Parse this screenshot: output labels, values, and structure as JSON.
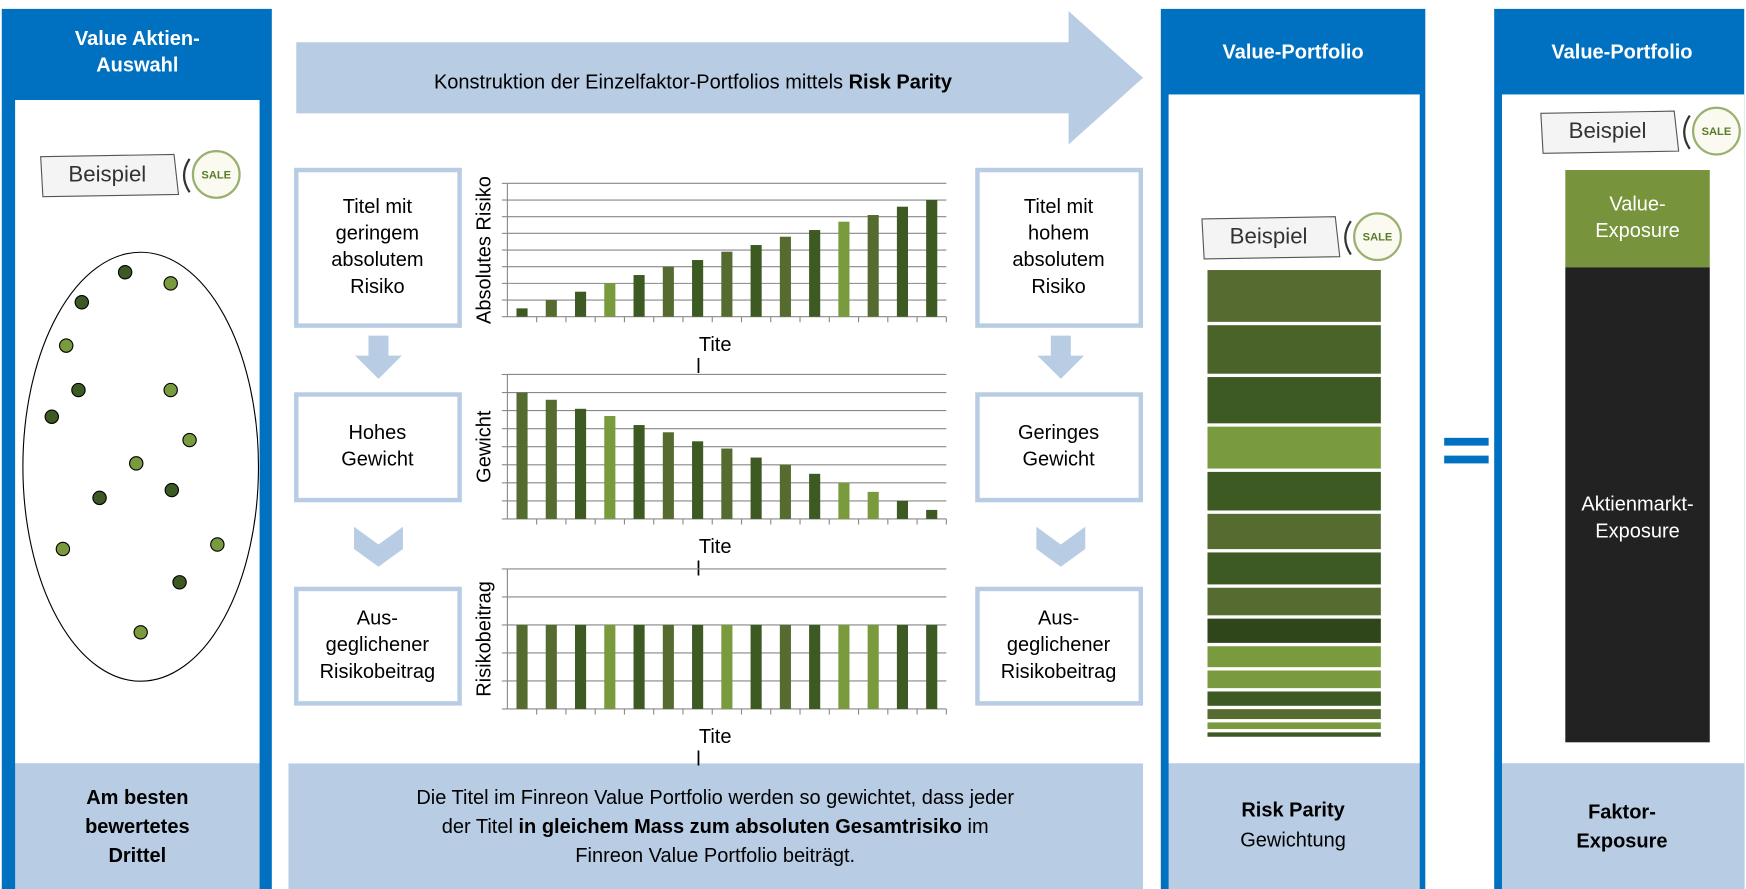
{
  "left": {
    "header": [
      "Value Aktien-",
      "Auswahl"
    ],
    "badge": {
      "text": "Beispiel",
      "seal": "SALE"
    },
    "footer": [
      "Am besten",
      "bewertetes",
      "Drittel"
    ]
  },
  "arrow": {
    "text": "Konstruktion der Einzelfaktor-Portfolios mittels ",
    "bold": "Risk Parity"
  },
  "left_boxes": [
    [
      "Titel mit",
      "geringem",
      "absolutem",
      "Risiko"
    ],
    [
      "Hohes",
      "Gewicht"
    ],
    [
      "Aus-",
      "geglichener",
      "Risikobeitrag"
    ]
  ],
  "right_boxes": [
    [
      "Titel mit",
      "hohem",
      "absolutem",
      "Risiko"
    ],
    [
      "Geringes",
      "Gewicht"
    ],
    [
      "Aus-",
      "geglichener",
      "Risikobeitrag"
    ]
  ],
  "charts": [
    {
      "type": "bar",
      "ylabel": "Absolutes Risiko",
      "xlabel": [
        "Tite",
        "l"
      ],
      "ylim": [
        0,
        8
      ],
      "yticks": [
        0,
        1,
        2,
        3,
        4,
        5,
        6,
        7,
        8
      ],
      "values": [
        0.5,
        1,
        1.5,
        2,
        2.5,
        3,
        3.4,
        3.9,
        4.3,
        4.8,
        5.2,
        5.7,
        6.1,
        6.6,
        7
      ],
      "colors": [
        "#3d5a23",
        "#556b2f",
        "#3d5a23",
        "#7a9a3e",
        "#3d5a23",
        "#556b2f",
        "#3d5a23",
        "#556b2f",
        "#3d5a23",
        "#556b2f",
        "#3d5a23",
        "#7a9a3e",
        "#556b2f",
        "#3d5a23",
        "#3d5a23"
      ]
    },
    {
      "type": "bar",
      "ylabel": "Gewicht",
      "xlabel": [
        "Tite",
        "l"
      ],
      "ylim": [
        0,
        8
      ],
      "yticks": [
        0,
        1,
        2,
        3,
        4,
        5,
        6,
        7,
        8
      ],
      "values": [
        7,
        6.6,
        6.1,
        5.7,
        5.2,
        4.8,
        4.3,
        3.9,
        3.4,
        3,
        2.5,
        2,
        1.5,
        1,
        0.5
      ],
      "colors": [
        "#556b2f",
        "#556b2f",
        "#3d5a23",
        "#7a9a3e",
        "#3d5a23",
        "#556b2f",
        "#3d5a23",
        "#556b2f",
        "#3d5a23",
        "#556b2f",
        "#3d5a23",
        "#7a9a3e",
        "#7a9a3e",
        "#3d5a23",
        "#3d5a23"
      ]
    },
    {
      "type": "bar",
      "ylabel": "Risikobeitrag",
      "xlabel": [
        "Tite",
        "l"
      ],
      "ylim": [
        0,
        5
      ],
      "yticks": [
        0,
        1,
        2,
        3,
        4,
        5
      ],
      "values": [
        3,
        3,
        3,
        3,
        3,
        3,
        3,
        3,
        3,
        3,
        3,
        3,
        3,
        3,
        3
      ],
      "colors": [
        "#556b2f",
        "#556b2f",
        "#3d5a23",
        "#7a9a3e",
        "#3d5a23",
        "#556b2f",
        "#3d5a23",
        "#7a9a3e",
        "#3d5a23",
        "#556b2f",
        "#3d5a23",
        "#7a9a3e",
        "#7a9a3e",
        "#3d5a23",
        "#3d5a23"
      ]
    }
  ],
  "footer": [
    [
      {
        "text": "Die Titel im Finreon Value Portfolio werden so gewichtet, dass jeder",
        "bold": false
      }
    ],
    [
      {
        "text": "der Titel ",
        "bold": false
      },
      {
        "text": "in gleichem Mass zum absoluten Gesamtrisiko",
        "bold": true
      },
      {
        "text": " im",
        "bold": false
      }
    ],
    [
      {
        "text": "Finreon Value Portfolio beiträgt.",
        "bold": false
      }
    ]
  ],
  "portfolio": {
    "header": "Value-Portfolio",
    "badge": {
      "text": "Beispiel",
      "seal": "SALE"
    },
    "weights": [
      47,
      44,
      42,
      38,
      35,
      32,
      29,
      25,
      22,
      19,
      16,
      13,
      9,
      6,
      4
    ],
    "colors": [
      "#556b2f",
      "#4a6328",
      "#3d5a23",
      "#7a9a3e",
      "#3d5a23",
      "#556b2f",
      "#3d5a23",
      "#556b2f",
      "#2f461b",
      "#7a9a3e",
      "#7a9a3e",
      "#3d5a23",
      "#556b2f",
      "#7a9a3e",
      "#3d5a23"
    ],
    "footer": {
      "bold": "Risk Parity",
      "text": "Gewichtung"
    }
  },
  "exposure": {
    "header": "Value-Portfolio",
    "badge": {
      "text": "Beispiel",
      "seal": "SALE"
    },
    "parts": [
      {
        "label": [
          "Value-",
          "Exposure"
        ],
        "share": 17,
        "color": "#77933c"
      },
      {
        "label": [
          "Aktienmarkt-",
          "Exposure"
        ],
        "share": 83,
        "color": "#222222"
      }
    ],
    "footer": [
      "Faktor-",
      "Exposure"
    ]
  }
}
